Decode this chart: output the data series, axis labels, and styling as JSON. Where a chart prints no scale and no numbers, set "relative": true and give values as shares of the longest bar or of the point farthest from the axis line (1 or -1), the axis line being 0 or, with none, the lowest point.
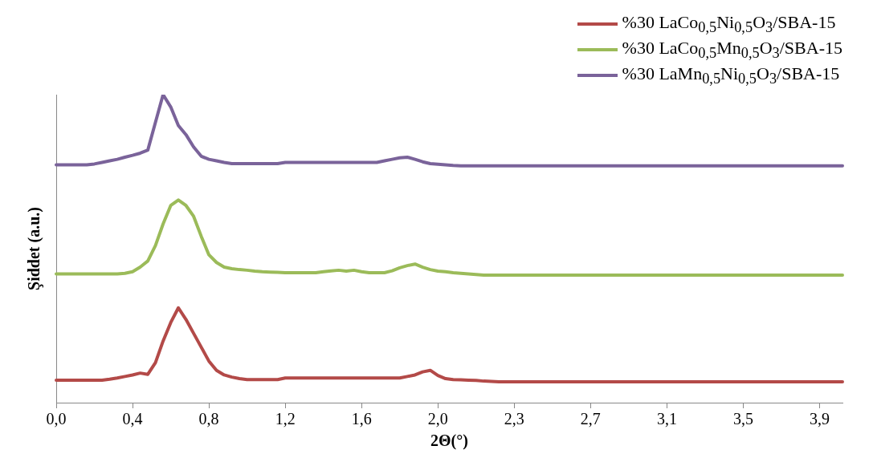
{
  "chart_data": {
    "type": "line",
    "xlabel": "2Θ(°)",
    "ylabel": "Şiddet (a.u.)",
    "relative": true,
    "grid": false,
    "legend": "top right",
    "marker": "none",
    "line_style": "solid",
    "categories": [
      "0,0",
      null,
      null,
      null,
      null,
      null,
      null,
      null,
      null,
      null,
      "0,4",
      null,
      null,
      null,
      null,
      null,
      null,
      null,
      null,
      null,
      "0,8",
      null,
      null,
      null,
      null,
      null,
      null,
      null,
      null,
      null,
      "1,2",
      null,
      null,
      null,
      null,
      null,
      null,
      null,
      null,
      null,
      "1,6",
      null,
      null,
      null,
      null,
      null,
      null,
      null,
      null,
      null,
      "2,0",
      null,
      null,
      null,
      null,
      null,
      null,
      null,
      null,
      null,
      "2,3",
      null,
      null,
      null,
      null,
      null,
      null,
      null,
      null,
      null,
      "2,7",
      null,
      null,
      null,
      null,
      null,
      null,
      null,
      null,
      null,
      "3,1",
      null,
      null,
      null,
      null,
      null,
      null,
      null,
      null,
      null,
      "3,5",
      null,
      null,
      null,
      null,
      null,
      null,
      null,
      null,
      null,
      "3,9",
      null,
      null,
      null
    ],
    "series": [
      {
        "name": "%30 LaCo$_{0,5}$Ni$_{0,5}$O$_{3}$/SBA-15",
        "color": "#b34a48",
        "values": [
          0.073,
          0.073,
          0.073,
          0.073,
          0.073,
          0.073,
          0.073,
          0.076,
          0.08,
          0.085,
          0.09,
          0.096,
          0.092,
          0.13,
          0.2,
          0.26,
          0.308,
          0.27,
          0.225,
          0.18,
          0.135,
          0.105,
          0.09,
          0.083,
          0.078,
          0.075,
          0.075,
          0.075,
          0.075,
          0.075,
          0.08,
          0.08,
          0.08,
          0.08,
          0.08,
          0.08,
          0.08,
          0.08,
          0.08,
          0.08,
          0.08,
          0.08,
          0.08,
          0.08,
          0.08,
          0.08,
          0.085,
          0.09,
          0.1,
          0.105,
          0.088,
          0.078,
          0.075,
          0.074,
          0.073,
          0.072,
          0.07,
          0.069,
          0.068,
          0.068,
          0.068,
          0.068,
          0.068,
          0.068,
          0.068,
          0.068,
          0.068,
          0.068,
          0.068,
          0.068,
          0.068,
          0.068,
          0.068,
          0.068,
          0.068,
          0.068,
          0.068,
          0.068,
          0.068,
          0.068,
          0.068,
          0.068,
          0.068,
          0.068,
          0.068,
          0.068,
          0.068,
          0.068,
          0.068,
          0.068,
          0.068,
          0.068,
          0.068,
          0.068,
          0.068,
          0.068,
          0.068,
          0.068,
          0.068,
          0.068,
          0.068,
          0.068,
          0.068,
          0.068
        ]
      },
      {
        "name": "%30 LaCo$_{0,5}$Mn$_{0,5}$O$_{3}$/SBA-15",
        "color": "#9bbb59",
        "values": [
          0.418,
          0.418,
          0.418,
          0.418,
          0.418,
          0.418,
          0.418,
          0.418,
          0.418,
          0.42,
          0.425,
          0.44,
          0.46,
          0.51,
          0.58,
          0.64,
          0.658,
          0.64,
          0.605,
          0.54,
          0.48,
          0.455,
          0.44,
          0.435,
          0.432,
          0.43,
          0.427,
          0.425,
          0.424,
          0.423,
          0.422,
          0.422,
          0.422,
          0.422,
          0.422,
          0.425,
          0.428,
          0.43,
          0.427,
          0.43,
          0.425,
          0.422,
          0.422,
          0.422,
          0.428,
          0.438,
          0.445,
          0.45,
          0.44,
          0.432,
          0.427,
          0.425,
          0.422,
          0.42,
          0.418,
          0.416,
          0.414,
          0.414,
          0.414,
          0.414,
          0.414,
          0.414,
          0.414,
          0.414,
          0.414,
          0.414,
          0.414,
          0.414,
          0.414,
          0.414,
          0.414,
          0.414,
          0.414,
          0.414,
          0.414,
          0.414,
          0.414,
          0.414,
          0.414,
          0.414,
          0.414,
          0.414,
          0.414,
          0.414,
          0.414,
          0.414,
          0.414,
          0.414,
          0.414,
          0.414,
          0.414,
          0.414,
          0.414,
          0.414,
          0.414,
          0.414,
          0.414,
          0.414,
          0.414,
          0.414,
          0.414,
          0.414,
          0.414,
          0.414
        ]
      },
      {
        "name": "%30 LaMn$_{0,5}$Ni$_{0,5}$O$_{3}$/SBA-15",
        "color": "#7a639a",
        "values": [
          0.772,
          0.772,
          0.772,
          0.772,
          0.772,
          0.775,
          0.78,
          0.785,
          0.79,
          0.797,
          0.803,
          0.81,
          0.82,
          0.91,
          1,
          0.96,
          0.9,
          0.87,
          0.83,
          0.8,
          0.79,
          0.785,
          0.78,
          0.776,
          0.776,
          0.776,
          0.776,
          0.776,
          0.776,
          0.776,
          0.78,
          0.78,
          0.78,
          0.78,
          0.78,
          0.78,
          0.78,
          0.78,
          0.78,
          0.78,
          0.78,
          0.78,
          0.78,
          0.785,
          0.79,
          0.795,
          0.797,
          0.79,
          0.782,
          0.776,
          0.774,
          0.772,
          0.77,
          0.769,
          0.769,
          0.769,
          0.769,
          0.769,
          0.769,
          0.769,
          0.769,
          0.769,
          0.769,
          0.769,
          0.769,
          0.769,
          0.769,
          0.769,
          0.769,
          0.769,
          0.769,
          0.769,
          0.769,
          0.769,
          0.769,
          0.769,
          0.769,
          0.769,
          0.769,
          0.769,
          0.769,
          0.769,
          0.769,
          0.769,
          0.769,
          0.769,
          0.769,
          0.769,
          0.769,
          0.769,
          0.769,
          0.769,
          0.769,
          0.769,
          0.769,
          0.769,
          0.769,
          0.769,
          0.769,
          0.769,
          0.769,
          0.769,
          0.769,
          0.769
        ]
      }
    ]
  }
}
